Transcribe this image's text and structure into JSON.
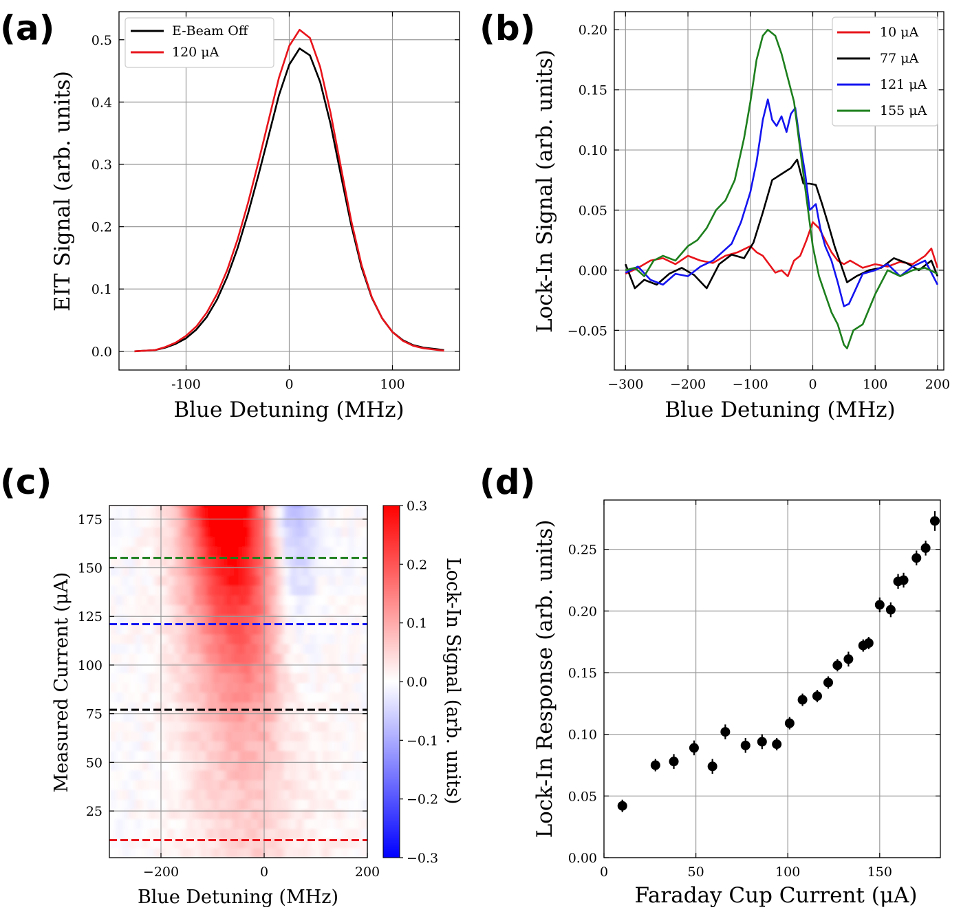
{
  "panels": {
    "a": {
      "letter": "(a)"
    },
    "b": {
      "letter": "(b)"
    },
    "c": {
      "letter": "(c)"
    },
    "d": {
      "letter": "(d)"
    }
  },
  "colors": {
    "red": "#e8141b",
    "black": "#000000",
    "blue": "#1414f0",
    "green": "#1d7f1d"
  },
  "chart_data": [
    {
      "id": "a",
      "type": "line",
      "xlabel": "Blue Detuning (MHz)",
      "ylabel": "EIT Signal (arb. units)",
      "xlim": [
        -165,
        165
      ],
      "ylim": [
        -0.03,
        0.545
      ],
      "xticks": [
        -100,
        0,
        100
      ],
      "yticks": [
        0.0,
        0.1,
        0.2,
        0.3,
        0.4,
        0.5
      ],
      "ytick_labels": [
        "0.0",
        "0.1",
        "0.2",
        "0.3",
        "0.4",
        "0.5"
      ],
      "legend_position": "top-left",
      "series": [
        {
          "name": "E-Beam Off",
          "color": "#000000",
          "x": [
            -150,
            -130,
            -120,
            -110,
            -100,
            -90,
            -80,
            -70,
            -60,
            -50,
            -40,
            -30,
            -20,
            -10,
            0,
            10,
            20,
            30,
            40,
            50,
            60,
            70,
            80,
            90,
            100,
            110,
            120,
            130,
            150
          ],
          "y": [
            0.0,
            0.002,
            0.006,
            0.012,
            0.021,
            0.035,
            0.055,
            0.083,
            0.12,
            0.166,
            0.221,
            0.282,
            0.346,
            0.411,
            0.46,
            0.486,
            0.475,
            0.432,
            0.365,
            0.283,
            0.203,
            0.135,
            0.086,
            0.053,
            0.031,
            0.018,
            0.01,
            0.006,
            0.002
          ]
        },
        {
          "name": "120 μA",
          "color": "#e8141b",
          "x": [
            -150,
            -130,
            -120,
            -110,
            -100,
            -90,
            -80,
            -70,
            -60,
            -50,
            -40,
            -30,
            -20,
            -10,
            0,
            10,
            20,
            30,
            40,
            50,
            60,
            70,
            80,
            90,
            100,
            110,
            120,
            130,
            150
          ],
          "y": [
            0.0,
            0.002,
            0.007,
            0.014,
            0.025,
            0.04,
            0.062,
            0.092,
            0.131,
            0.18,
            0.238,
            0.303,
            0.371,
            0.439,
            0.49,
            0.516,
            0.503,
            0.456,
            0.383,
            0.296,
            0.21,
            0.139,
            0.087,
            0.053,
            0.031,
            0.017,
            0.009,
            0.005,
            0.001
          ]
        }
      ]
    },
    {
      "id": "b",
      "type": "line",
      "xlabel": "Blue Detuning (MHz)",
      "ylabel": "Lock-In Signal (arb. units)",
      "xlim": [
        -318,
        210
      ],
      "ylim": [
        -0.083,
        0.215
      ],
      "xticks": [
        -300,
        -200,
        -100,
        0,
        100,
        200
      ],
      "xtick_labels": [
        "−300",
        "−200",
        "−100",
        "0",
        "100",
        "200"
      ],
      "yticks": [
        -0.05,
        0.0,
        0.05,
        0.1,
        0.15,
        0.2
      ],
      "ytick_labels": [
        "−0.05",
        "0.00",
        "0.05",
        "0.10",
        "0.15",
        "0.20"
      ],
      "legend_position": "top-right",
      "series": [
        {
          "name": "10 μA",
          "color": "#e8141b",
          "x": [
            -300,
            -280,
            -260,
            -240,
            -220,
            -200,
            -180,
            -160,
            -140,
            -120,
            -100,
            -90,
            -80,
            -70,
            -60,
            -50,
            -40,
            -30,
            -20,
            -10,
            0,
            10,
            20,
            30,
            40,
            50,
            60,
            80,
            100,
            120,
            140,
            160,
            180,
            190,
            200
          ],
          "y": [
            -0.003,
            0.002,
            0.008,
            0.01,
            0.005,
            0.012,
            0.008,
            0.006,
            0.012,
            0.015,
            0.02,
            0.015,
            0.012,
            0.005,
            -0.002,
            0.0,
            -0.005,
            0.008,
            0.012,
            0.025,
            0.04,
            0.035,
            0.025,
            0.015,
            0.008,
            0.005,
            0.008,
            0.002,
            0.005,
            0.003,
            0.007,
            0.005,
            0.012,
            0.018,
            0.002
          ]
        },
        {
          "name": "77 μA",
          "color": "#000000",
          "x": [
            -300,
            -285,
            -270,
            -250,
            -230,
            -210,
            -190,
            -170,
            -150,
            -130,
            -110,
            -95,
            -80,
            -65,
            -50,
            -35,
            -25,
            -15,
            -5,
            5,
            15,
            25,
            35,
            45,
            55,
            70,
            90,
            110,
            130,
            150,
            170,
            190,
            200
          ],
          "y": [
            0.005,
            -0.015,
            -0.008,
            -0.012,
            -0.003,
            0.002,
            -0.004,
            -0.015,
            0.005,
            0.013,
            0.01,
            0.023,
            0.048,
            0.075,
            0.08,
            0.085,
            0.092,
            0.072,
            0.072,
            0.071,
            0.055,
            0.038,
            0.02,
            0.005,
            -0.01,
            -0.005,
            0.0,
            0.002,
            0.01,
            0.006,
            0.0,
            0.008,
            -0.005
          ]
        },
        {
          "name": "121 μA",
          "color": "#1414f0",
          "x": [
            -300,
            -280,
            -260,
            -240,
            -220,
            -200,
            -180,
            -160,
            -145,
            -130,
            -115,
            -100,
            -90,
            -80,
            -72,
            -65,
            -58,
            -50,
            -42,
            -35,
            -28,
            -20,
            -12,
            -5,
            5,
            12,
            20,
            30,
            40,
            50,
            58,
            65,
            80,
            100,
            120,
            140,
            160,
            180,
            200
          ],
          "y": [
            -0.002,
            0.003,
            -0.008,
            -0.012,
            -0.003,
            -0.005,
            0.003,
            0.008,
            0.015,
            0.022,
            0.04,
            0.065,
            0.09,
            0.125,
            0.142,
            0.125,
            0.12,
            0.128,
            0.115,
            0.13,
            0.135,
            0.105,
            0.08,
            0.05,
            0.055,
            0.035,
            0.02,
            0.008,
            -0.01,
            -0.03,
            -0.028,
            -0.02,
            -0.003,
            0.0,
            0.005,
            -0.005,
            0.003,
            0.008,
            -0.012
          ]
        },
        {
          "name": "155 μA",
          "color": "#1d7f1d",
          "x": [
            -300,
            -285,
            -270,
            -255,
            -240,
            -220,
            -200,
            -185,
            -170,
            -155,
            -140,
            -125,
            -110,
            -100,
            -90,
            -80,
            -72,
            -60,
            -50,
            -40,
            -30,
            -20,
            -10,
            0,
            10,
            20,
            30,
            40,
            50,
            55,
            65,
            80,
            100,
            120,
            140,
            160,
            180,
            200
          ],
          "y": [
            0.0,
            0.002,
            -0.005,
            0.008,
            0.012,
            0.008,
            0.02,
            0.025,
            0.035,
            0.05,
            0.058,
            0.075,
            0.11,
            0.14,
            0.175,
            0.195,
            0.2,
            0.195,
            0.18,
            0.16,
            0.14,
            0.1,
            0.06,
            0.02,
            -0.005,
            -0.02,
            -0.035,
            -0.045,
            -0.062,
            -0.065,
            -0.05,
            -0.045,
            -0.02,
            0.0,
            -0.005,
            0.0,
            0.002,
            -0.003
          ]
        }
      ]
    },
    {
      "id": "c",
      "type": "heatmap",
      "xlabel": "Blue Detuning (MHz)",
      "ylabel": "Measured Current (μA)",
      "xlim": [
        -300,
        200
      ],
      "ylim": [
        1,
        182
      ],
      "xticks": [
        -200,
        0,
        200
      ],
      "xtick_labels": [
        "−200",
        "0",
        "200"
      ],
      "yticks": [
        25,
        50,
        75,
        100,
        125,
        150,
        175
      ],
      "colorbar": {
        "label": "Lock-In Signal (arb. units)",
        "vmin": -0.3,
        "vmax": 0.3,
        "ticks": [
          0.3,
          0.2,
          0.1,
          0.0,
          -0.1,
          -0.2,
          -0.3
        ],
        "tick_labels": [
          "0.3",
          "0.2",
          "0.1",
          "0.0",
          "−0.1",
          "−0.2",
          "−0.3"
        ]
      },
      "reference_lines": [
        {
          "current": 10,
          "color": "#e8141b"
        },
        {
          "current": 77,
          "color": "#000000"
        },
        {
          "current": 121,
          "color": "#1414f0"
        },
        {
          "current": 155,
          "color": "#1d7f1d"
        }
      ]
    },
    {
      "id": "d",
      "type": "scatter",
      "xlabel": "Faraday Cup Current (μA)",
      "ylabel": "Lock-In Response (arb. units)",
      "xlim": [
        0,
        183
      ],
      "ylim": [
        0,
        0.29
      ],
      "xticks": [
        0,
        50,
        100,
        150
      ],
      "yticks": [
        0.0,
        0.05,
        0.1,
        0.15,
        0.2,
        0.25
      ],
      "ytick_labels": [
        "0.00",
        "0.05",
        "0.10",
        "0.15",
        "0.20",
        "0.25"
      ],
      "points": [
        {
          "x": 10,
          "y": 0.042,
          "err": 0.005
        },
        {
          "x": 28,
          "y": 0.075,
          "err": 0.005
        },
        {
          "x": 38,
          "y": 0.078,
          "err": 0.006
        },
        {
          "x": 49,
          "y": 0.089,
          "err": 0.006
        },
        {
          "x": 59,
          "y": 0.074,
          "err": 0.006
        },
        {
          "x": 66,
          "y": 0.102,
          "err": 0.006
        },
        {
          "x": 77,
          "y": 0.091,
          "err": 0.006
        },
        {
          "x": 86,
          "y": 0.094,
          "err": 0.006
        },
        {
          "x": 94,
          "y": 0.092,
          "err": 0.005
        },
        {
          "x": 101,
          "y": 0.109,
          "err": 0.005
        },
        {
          "x": 108,
          "y": 0.128,
          "err": 0.005
        },
        {
          "x": 116,
          "y": 0.131,
          "err": 0.005
        },
        {
          "x": 122,
          "y": 0.142,
          "err": 0.005
        },
        {
          "x": 127,
          "y": 0.156,
          "err": 0.005
        },
        {
          "x": 133,
          "y": 0.161,
          "err": 0.006
        },
        {
          "x": 141,
          "y": 0.172,
          "err": 0.005
        },
        {
          "x": 144,
          "y": 0.174,
          "err": 0.005
        },
        {
          "x": 150,
          "y": 0.205,
          "err": 0.006
        },
        {
          "x": 156,
          "y": 0.201,
          "err": 0.006
        },
        {
          "x": 160,
          "y": 0.224,
          "err": 0.006
        },
        {
          "x": 163,
          "y": 0.225,
          "err": 0.006
        },
        {
          "x": 170,
          "y": 0.243,
          "err": 0.006
        },
        {
          "x": 175,
          "y": 0.251,
          "err": 0.006
        },
        {
          "x": 180,
          "y": 0.273,
          "err": 0.008
        }
      ]
    }
  ]
}
